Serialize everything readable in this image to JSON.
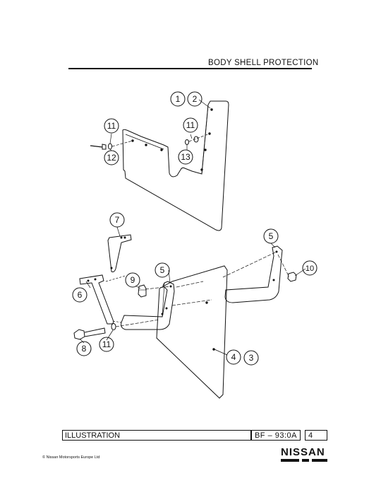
{
  "header": {
    "title": "BODY SHELL PROTECTION"
  },
  "callouts": {
    "c1": "1",
    "c2": "2",
    "c3": "3",
    "c4": "4",
    "c5a": "5",
    "c5b": "5",
    "c6": "6",
    "c7": "7",
    "c8": "8",
    "c9": "9",
    "c10": "10",
    "c11a": "11",
    "c11b": "11",
    "c11c": "11",
    "c12": "12",
    "c13": "13"
  },
  "footer": {
    "illustration_label": "ILLUSTRATION",
    "code": "BF – 93:0A",
    "page": "4",
    "copyright": "© Nissan Motorsports Europe Ltd",
    "logo_text": "NISSAN"
  },
  "colors": {
    "ink": "#111111",
    "paper": "#ffffff"
  }
}
